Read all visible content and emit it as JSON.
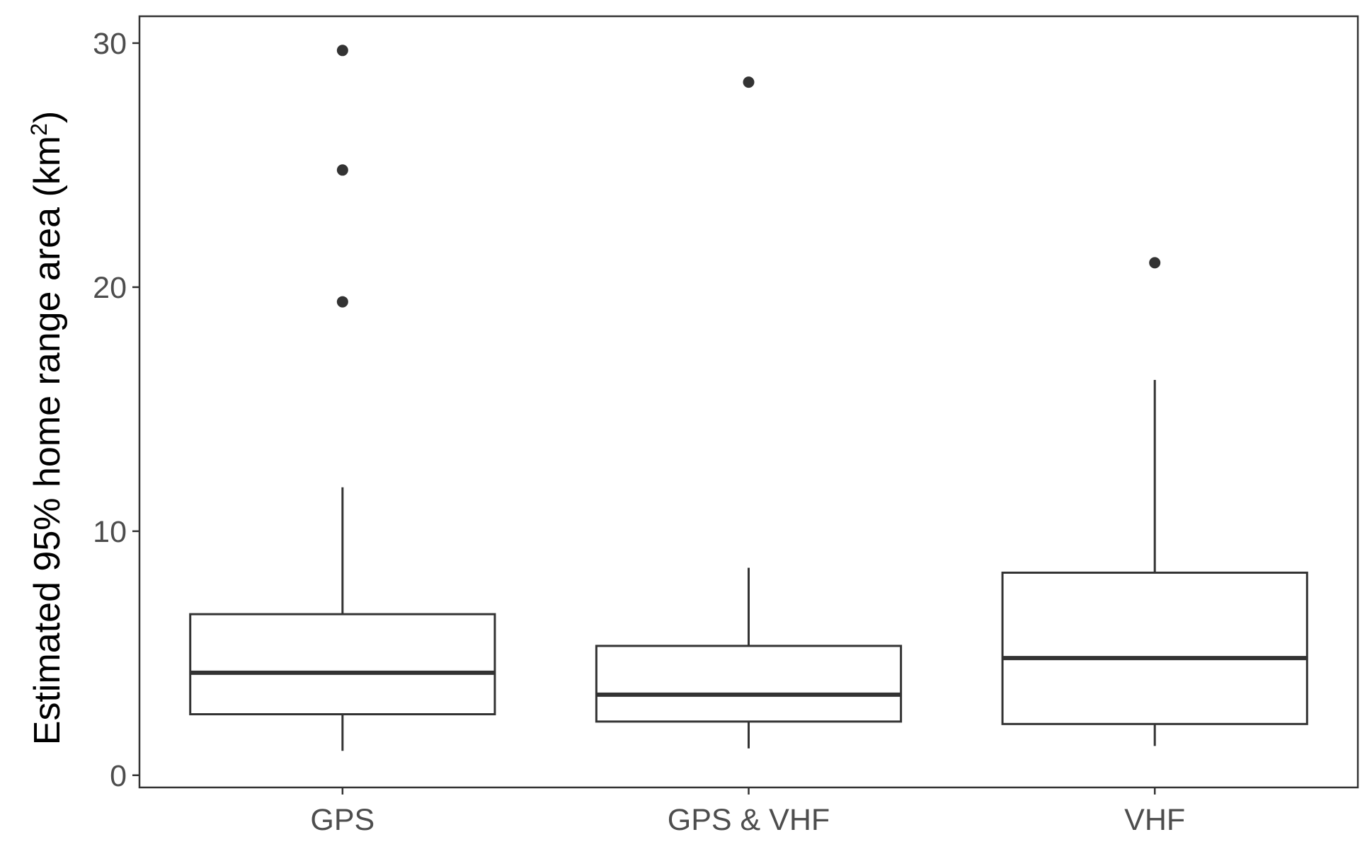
{
  "chart_data": {
    "type": "boxplot",
    "title": "",
    "xlabel": "",
    "ylabel": {
      "prefix": "Estimated 95% home range area (km",
      "superscript": "2",
      "suffix": ")"
    },
    "ylim": [
      -0.5,
      31.1
    ],
    "y_ticks": [
      0,
      10,
      20,
      30
    ],
    "y_tick_labels": [
      "0",
      "10",
      "20",
      "30"
    ],
    "grid": false,
    "legend": "none",
    "categories": [
      "GPS",
      "GPS & VHF",
      "VHF"
    ],
    "boxes": [
      {
        "category": "GPS",
        "whisker_low": 1.0,
        "q1": 2.5,
        "median": 4.2,
        "q3": 6.6,
        "whisker_high": 11.8,
        "outliers": [
          19.4,
          24.8,
          29.7
        ]
      },
      {
        "category": "GPS & VHF",
        "whisker_low": 1.1,
        "q1": 2.2,
        "median": 3.3,
        "q3": 5.3,
        "whisker_high": 8.5,
        "outliers": [
          28.4
        ]
      },
      {
        "category": "VHF",
        "whisker_low": 1.2,
        "q1": 2.1,
        "median": 4.8,
        "q3": 8.3,
        "whisker_high": 16.2,
        "outliers": [
          21.0
        ]
      }
    ]
  },
  "colors": {
    "box_line": "#333333",
    "panel_border": "#333333",
    "tick_text": "#4d4d4d",
    "axis_title": "#000000",
    "background": "#ffffff"
  }
}
